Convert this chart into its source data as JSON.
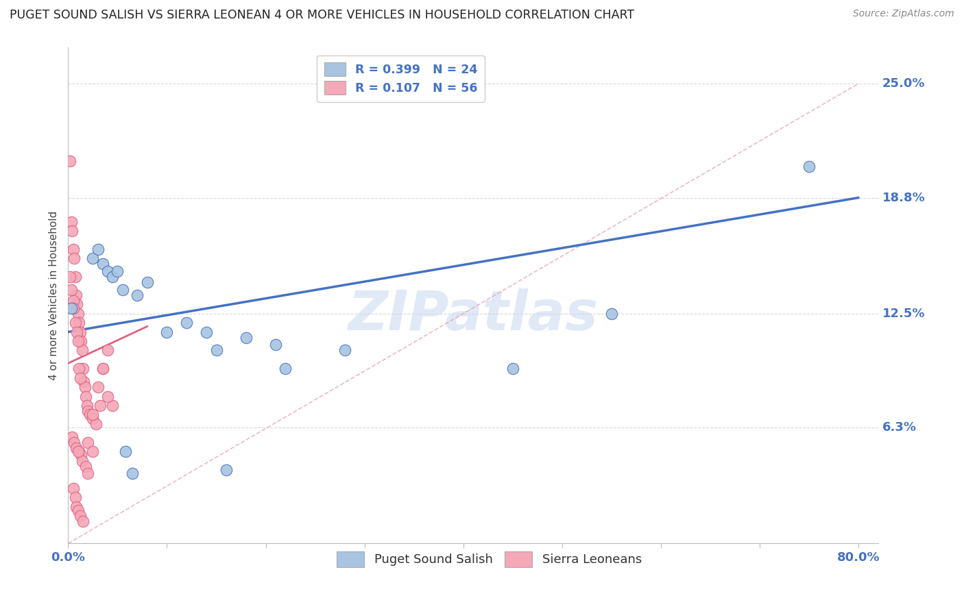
{
  "title": "PUGET SOUND SALISH VS SIERRA LEONEAN 4 OR MORE VEHICLES IN HOUSEHOLD CORRELATION CHART",
  "source": "Source: ZipAtlas.com",
  "ylabel": "4 or more Vehicles in Household",
  "x_ticks": [
    0.0,
    10.0,
    20.0,
    30.0,
    40.0,
    50.0,
    60.0,
    70.0,
    80.0
  ],
  "y_ticks": [
    0.0,
    6.3,
    12.5,
    18.8,
    25.0
  ],
  "y_tick_labels": [
    "",
    "6.3%",
    "12.5%",
    "18.8%",
    "25.0%"
  ],
  "xlim": [
    0,
    82
  ],
  "ylim": [
    0,
    27
  ],
  "legend_entries": [
    {
      "label": "R = 0.399   N = 24",
      "color": "#a8c4e0"
    },
    {
      "label": "R = 0.107   N = 56",
      "color": "#f4a8b8"
    }
  ],
  "bottom_legend": [
    "Puget Sound Salish",
    "Sierra Leoneans"
  ],
  "blue_scatter_x": [
    0.3,
    2.5,
    3.0,
    3.5,
    4.0,
    4.5,
    5.0,
    5.5,
    7.0,
    8.0,
    10.0,
    12.0,
    14.0,
    15.0,
    18.0,
    21.0,
    22.0,
    75.0,
    55.0,
    45.0,
    28.0,
    16.0,
    6.5,
    5.8
  ],
  "blue_scatter_y": [
    12.8,
    15.5,
    16.0,
    15.2,
    14.8,
    14.5,
    14.8,
    13.8,
    13.5,
    14.2,
    11.5,
    12.0,
    11.5,
    10.5,
    11.2,
    10.8,
    9.5,
    20.5,
    12.5,
    9.5,
    10.5,
    4.0,
    3.8,
    5.0
  ],
  "pink_scatter_x": [
    0.2,
    0.3,
    0.4,
    0.5,
    0.6,
    0.7,
    0.8,
    0.9,
    1.0,
    1.1,
    1.2,
    1.3,
    1.4,
    1.5,
    1.6,
    1.7,
    1.8,
    1.9,
    2.0,
    2.2,
    2.5,
    2.8,
    3.0,
    3.5,
    4.0,
    4.5,
    0.2,
    0.3,
    0.5,
    0.5,
    0.7,
    0.9,
    1.0,
    1.1,
    1.2,
    0.4,
    0.6,
    0.8,
    1.1,
    1.3,
    1.4,
    1.8,
    2.0,
    2.5,
    3.2,
    4.0,
    0.5,
    0.7,
    0.8,
    1.0,
    1.2,
    1.5,
    2.0,
    2.5,
    3.5,
    1.0
  ],
  "pink_scatter_y": [
    20.8,
    17.5,
    17.0,
    16.0,
    15.5,
    14.5,
    13.5,
    13.0,
    12.5,
    12.0,
    11.5,
    11.0,
    10.5,
    9.5,
    8.8,
    8.5,
    8.0,
    7.5,
    7.2,
    7.0,
    6.8,
    6.5,
    8.5,
    9.5,
    10.5,
    7.5,
    14.5,
    13.8,
    13.2,
    12.8,
    12.0,
    11.5,
    11.0,
    9.5,
    9.0,
    5.8,
    5.5,
    5.2,
    5.0,
    4.8,
    4.5,
    4.2,
    3.8,
    7.0,
    7.5,
    8.0,
    3.0,
    2.5,
    2.0,
    1.8,
    1.5,
    1.2,
    5.5,
    5.0,
    9.5,
    5.0
  ],
  "blue_line_x": [
    0.0,
    80.0
  ],
  "blue_line_y": [
    11.5,
    18.8
  ],
  "pink_line_x": [
    0.0,
    8.0
  ],
  "pink_line_y": [
    9.8,
    11.8
  ],
  "diag_line_x": [
    0.0,
    80.0
  ],
  "diag_line_y": [
    0.0,
    25.0
  ],
  "blue_color": "#4472c4",
  "pink_color": "#e06080",
  "blue_scatter_color": "#a8c4e0",
  "pink_scatter_color": "#f4a8b8",
  "grid_color": "#cccccc",
  "watermark_text": "ZIPatlas",
  "background_color": "#ffffff"
}
